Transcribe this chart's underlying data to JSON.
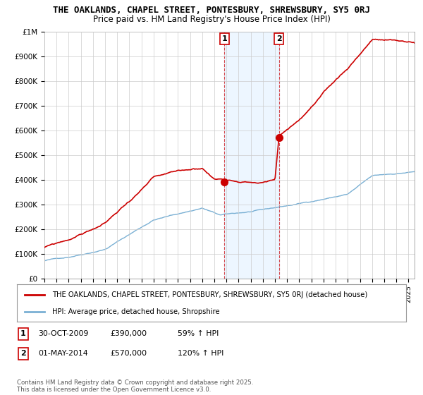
{
  "title_line1": "THE OAKLANDS, CHAPEL STREET, PONTESBURY, SHREWSBURY, SY5 0RJ",
  "title_line2": "Price paid vs. HM Land Registry's House Price Index (HPI)",
  "y_ticks": [
    0,
    100000,
    200000,
    300000,
    400000,
    500000,
    600000,
    700000,
    800000,
    900000,
    1000000
  ],
  "y_tick_labels": [
    "£0",
    "£100K",
    "£200K",
    "£300K",
    "£400K",
    "£500K",
    "£600K",
    "£700K",
    "£800K",
    "£900K",
    "£1M"
  ],
  "xlim_start": 1995.0,
  "xlim_end": 2025.5,
  "ylim_min": 0,
  "ylim_max": 1000000,
  "legend_line1": "THE OAKLANDS, CHAPEL STREET, PONTESBURY, SHREWSBURY, SY5 0RJ (detached house)",
  "legend_line2": "HPI: Average price, detached house, Shropshire",
  "sale1_date": "30-OCT-2009",
  "sale1_price": "£390,000",
  "sale1_hpi": "59% ↑ HPI",
  "sale1_x": 2009.83,
  "sale1_y": 390000,
  "sale2_date": "01-MAY-2014",
  "sale2_price": "£570,000",
  "sale2_hpi": "120% ↑ HPI",
  "sale2_x": 2014.33,
  "sale2_y": 570000,
  "property_color": "#cc0000",
  "hpi_color": "#7ab0d4",
  "span_color": "#ddeeff",
  "copyright_text": "Contains HM Land Registry data © Crown copyright and database right 2025.\nThis data is licensed under the Open Government Licence v3.0.",
  "background_color": "#ffffff",
  "grid_color": "#cccccc"
}
